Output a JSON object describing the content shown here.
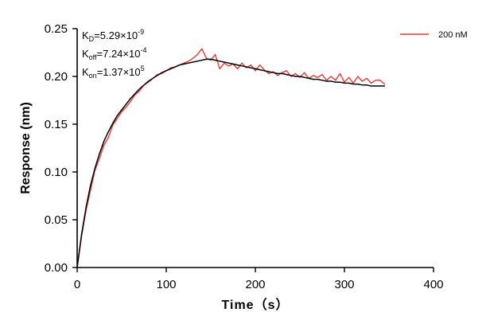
{
  "chart_data": {
    "type": "line",
    "title": "",
    "xlabel": "Time（s）",
    "ylabel": "Response (nm)",
    "xlim": [
      0,
      400
    ],
    "ylim": [
      0,
      0.25
    ],
    "xticks": [
      0,
      100,
      200,
      300,
      400
    ],
    "yticks": [
      0.0,
      0.05,
      0.1,
      0.15,
      0.2,
      0.25
    ],
    "xtick_labels": [
      "0",
      "100",
      "200",
      "300",
      "400"
    ],
    "ytick_labels": [
      "0.00",
      "0.05",
      "0.10",
      "0.15",
      "0.20",
      "0.25"
    ],
    "grid": false,
    "legend_position": "top-right",
    "annotations": [
      {
        "sym": "K",
        "sub": "D",
        "eq": "=5.29×10",
        "sup": "-9"
      },
      {
        "sym": "K",
        "sub": "off",
        "eq": "=7.24×10",
        "sup": "-4"
      },
      {
        "sym": "K",
        "sub": "on",
        "eq": "=1.37×10",
        "sup": "5"
      }
    ],
    "series": [
      {
        "name": "200 nM",
        "color": "#e53935",
        "style": "noisy-measured",
        "x": [
          0,
          5,
          10,
          15,
          20,
          25,
          30,
          35,
          40,
          45,
          50,
          55,
          60,
          65,
          70,
          75,
          80,
          85,
          90,
          95,
          100,
          105,
          110,
          115,
          120,
          125,
          130,
          135,
          140,
          145,
          150,
          155,
          160,
          165,
          170,
          175,
          180,
          185,
          190,
          195,
          200,
          205,
          210,
          215,
          220,
          225,
          230,
          235,
          240,
          245,
          250,
          255,
          260,
          265,
          270,
          275,
          280,
          285,
          290,
          295,
          300,
          305,
          310,
          315,
          320,
          325,
          330,
          335,
          340,
          345
        ],
        "y": [
          0.0,
          0.033,
          0.06,
          0.081,
          0.102,
          0.114,
          0.128,
          0.136,
          0.149,
          0.156,
          0.163,
          0.168,
          0.174,
          0.181,
          0.185,
          0.191,
          0.194,
          0.198,
          0.202,
          0.203,
          0.206,
          0.209,
          0.21,
          0.212,
          0.214,
          0.216,
          0.219,
          0.223,
          0.229,
          0.219,
          0.217,
          0.223,
          0.208,
          0.214,
          0.211,
          0.213,
          0.208,
          0.214,
          0.209,
          0.212,
          0.206,
          0.212,
          0.207,
          0.203,
          0.205,
          0.201,
          0.204,
          0.206,
          0.2,
          0.203,
          0.199,
          0.204,
          0.198,
          0.201,
          0.199,
          0.202,
          0.196,
          0.2,
          0.196,
          0.203,
          0.194,
          0.199,
          0.193,
          0.2,
          0.195,
          0.198,
          0.193,
          0.196,
          0.196,
          0.192
        ]
      },
      {
        "name": "",
        "color": "#000000",
        "style": "fit",
        "x": [
          0,
          5,
          10,
          15,
          20,
          25,
          30,
          35,
          40,
          45,
          50,
          55,
          60,
          65,
          70,
          75,
          80,
          85,
          90,
          95,
          100,
          105,
          110,
          115,
          120,
          125,
          130,
          135,
          140,
          145,
          150,
          155,
          160,
          165,
          170,
          175,
          180,
          185,
          190,
          195,
          200,
          205,
          210,
          215,
          220,
          225,
          230,
          235,
          240,
          245,
          250,
          255,
          260,
          265,
          270,
          275,
          280,
          285,
          290,
          295,
          300,
          305,
          310,
          315,
          320,
          325,
          330,
          335,
          340,
          345
        ],
        "y": [
          0.0,
          0.035,
          0.063,
          0.086,
          0.104,
          0.119,
          0.132,
          0.142,
          0.151,
          0.159,
          0.165,
          0.171,
          0.177,
          0.182,
          0.187,
          0.191,
          0.195,
          0.198,
          0.201,
          0.204,
          0.206,
          0.208,
          0.21,
          0.212,
          0.213,
          0.214,
          0.215,
          0.216,
          0.217,
          0.218,
          0.218,
          0.217,
          0.216,
          0.215,
          0.214,
          0.213,
          0.212,
          0.211,
          0.21,
          0.209,
          0.208,
          0.207,
          0.206,
          0.205,
          0.204,
          0.203,
          0.203,
          0.202,
          0.201,
          0.2,
          0.2,
          0.199,
          0.198,
          0.197,
          0.197,
          0.196,
          0.195,
          0.195,
          0.194,
          0.194,
          0.193,
          0.193,
          0.192,
          0.192,
          0.191,
          0.191,
          0.19,
          0.19,
          0.19,
          0.19
        ]
      }
    ]
  }
}
